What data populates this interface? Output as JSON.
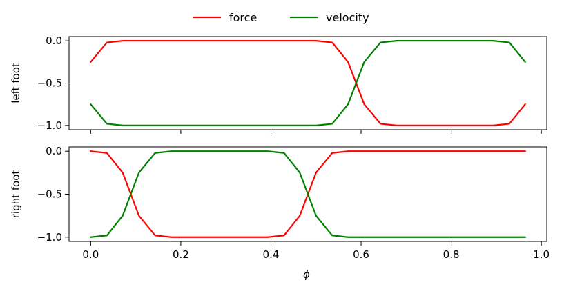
{
  "chart_data": [
    {
      "type": "line",
      "ylabel": "left foot",
      "xlabel": "",
      "xlim": [
        -0.048,
        1.012
      ],
      "ylim": [
        -1.05,
        0.05
      ],
      "yticks": [
        0.0,
        -0.5,
        -1.0
      ],
      "ytick_labels": [
        "0.0",
        "−0.5",
        "−1.0"
      ],
      "xticks": [
        0.0,
        0.2,
        0.4,
        0.6,
        0.8,
        1.0
      ],
      "x": [
        0.0,
        0.036,
        0.071,
        0.107,
        0.143,
        0.179,
        0.214,
        0.25,
        0.286,
        0.321,
        0.357,
        0.393,
        0.429,
        0.464,
        0.5,
        0.536,
        0.571,
        0.607,
        0.643,
        0.679,
        0.714,
        0.75,
        0.786,
        0.821,
        0.857,
        0.893,
        0.929,
        0.964
      ],
      "series": [
        {
          "name": "force",
          "color": "#ff0000",
          "values": [
            -0.25,
            -0.02,
            0.0,
            0.0,
            0.0,
            0.0,
            0.0,
            0.0,
            0.0,
            0.0,
            0.0,
            0.0,
            0.0,
            0.0,
            0.0,
            -0.02,
            -0.25,
            -0.75,
            -0.98,
            -1.0,
            -1.0,
            -1.0,
            -1.0,
            -1.0,
            -1.0,
            -1.0,
            -0.98,
            -0.75
          ]
        },
        {
          "name": "velocity",
          "color": "#008000",
          "values": [
            -0.75,
            -0.98,
            -1.0,
            -1.0,
            -1.0,
            -1.0,
            -1.0,
            -1.0,
            -1.0,
            -1.0,
            -1.0,
            -1.0,
            -1.0,
            -1.0,
            -1.0,
            -0.98,
            -0.75,
            -0.25,
            -0.02,
            0.0,
            0.0,
            0.0,
            0.0,
            0.0,
            0.0,
            0.0,
            -0.02,
            -0.25
          ]
        }
      ]
    },
    {
      "type": "line",
      "ylabel": "right foot",
      "xlabel": "ϕ",
      "xlim": [
        -0.048,
        1.012
      ],
      "ylim": [
        -1.05,
        0.05
      ],
      "yticks": [
        0.0,
        -0.5,
        -1.0
      ],
      "ytick_labels": [
        "0.0",
        "−0.5",
        "−1.0"
      ],
      "xticks": [
        0.0,
        0.2,
        0.4,
        0.6,
        0.8,
        1.0
      ],
      "xtick_labels": [
        "0.0",
        "0.2",
        "0.4",
        "0.6",
        "0.8",
        "1.0"
      ],
      "x": [
        0.0,
        0.036,
        0.071,
        0.107,
        0.143,
        0.179,
        0.214,
        0.25,
        0.286,
        0.321,
        0.357,
        0.393,
        0.429,
        0.464,
        0.5,
        0.536,
        0.571,
        0.607,
        0.643,
        0.679,
        0.714,
        0.75,
        0.786,
        0.821,
        0.857,
        0.893,
        0.929,
        0.964
      ],
      "series": [
        {
          "name": "force",
          "color": "#ff0000",
          "values": [
            0.0,
            -0.02,
            -0.25,
            -0.75,
            -0.98,
            -1.0,
            -1.0,
            -1.0,
            -1.0,
            -1.0,
            -1.0,
            -1.0,
            -0.98,
            -0.75,
            -0.25,
            -0.02,
            0.0,
            0.0,
            0.0,
            0.0,
            0.0,
            0.0,
            0.0,
            0.0,
            0.0,
            0.0,
            0.0,
            0.0
          ]
        },
        {
          "name": "velocity",
          "color": "#008000",
          "values": [
            -1.0,
            -0.98,
            -0.75,
            -0.25,
            -0.02,
            0.0,
            0.0,
            0.0,
            0.0,
            0.0,
            0.0,
            0.0,
            -0.02,
            -0.25,
            -0.75,
            -0.98,
            -1.0,
            -1.0,
            -1.0,
            -1.0,
            -1.0,
            -1.0,
            -1.0,
            -1.0,
            -1.0,
            -1.0,
            -1.0,
            -1.0
          ]
        }
      ]
    }
  ],
  "legend": {
    "placement": "top-center",
    "entries": [
      {
        "label": "force",
        "color": "#ff0000"
      },
      {
        "label": "velocity",
        "color": "#008000"
      }
    ]
  }
}
